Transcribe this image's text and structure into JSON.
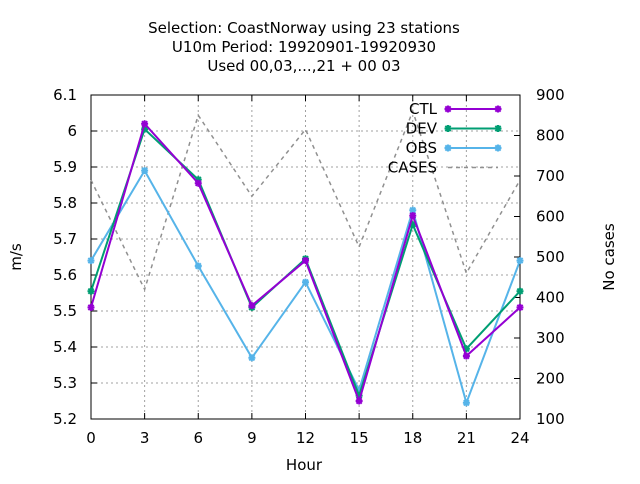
{
  "chart_data": {
    "type": "line",
    "title_lines": [
      "Selection: CoastNorway using    23 stations",
      "U10m   Period: 19920901-19920930",
      "Used  00,03,...,21  + 00 03"
    ],
    "xlabel": "Hour",
    "ylabel": "m/s",
    "y2label": "No cases",
    "x": [
      0,
      3,
      6,
      9,
      12,
      15,
      18,
      21,
      24
    ],
    "xlim": [
      0,
      24
    ],
    "ylim": [
      5.2,
      6.1
    ],
    "y2lim": [
      100,
      900
    ],
    "x_ticks": [
      "0",
      "3",
      "6",
      "9",
      "12",
      "15",
      "18",
      "21",
      "24"
    ],
    "y_ticks": [
      "5.2",
      "5.3",
      "5.4",
      "5.5",
      "5.6",
      "5.7",
      "5.8",
      "5.9",
      "6",
      "6.1"
    ],
    "y2_ticks": [
      "100",
      "200",
      "300",
      "400",
      "500",
      "600",
      "700",
      "800",
      "900"
    ],
    "grid": true,
    "legend_position": "top-right",
    "series": [
      {
        "name": "CTL",
        "axis": "y",
        "color": "#9400d3",
        "style": "solid",
        "marker": "star",
        "values": [
          5.51,
          6.02,
          5.855,
          5.515,
          5.64,
          5.25,
          5.765,
          5.375,
          5.51
        ]
      },
      {
        "name": "DEV",
        "axis": "y",
        "color": "#009e73",
        "style": "solid",
        "marker": "star",
        "values": [
          5.555,
          6.005,
          5.865,
          5.51,
          5.645,
          5.265,
          5.74,
          5.395,
          5.555
        ]
      },
      {
        "name": "OBS",
        "axis": "y",
        "color": "#56b4e9",
        "style": "solid",
        "marker": "star",
        "values": [
          5.64,
          5.89,
          5.625,
          5.37,
          5.58,
          5.28,
          5.78,
          5.245,
          5.64
        ]
      },
      {
        "name": "CASES",
        "axis": "y2",
        "color": "#909090",
        "style": "dashed",
        "marker": "none",
        "values": [
          690,
          420,
          850,
          650,
          815,
          525,
          860,
          460,
          690
        ]
      }
    ]
  }
}
